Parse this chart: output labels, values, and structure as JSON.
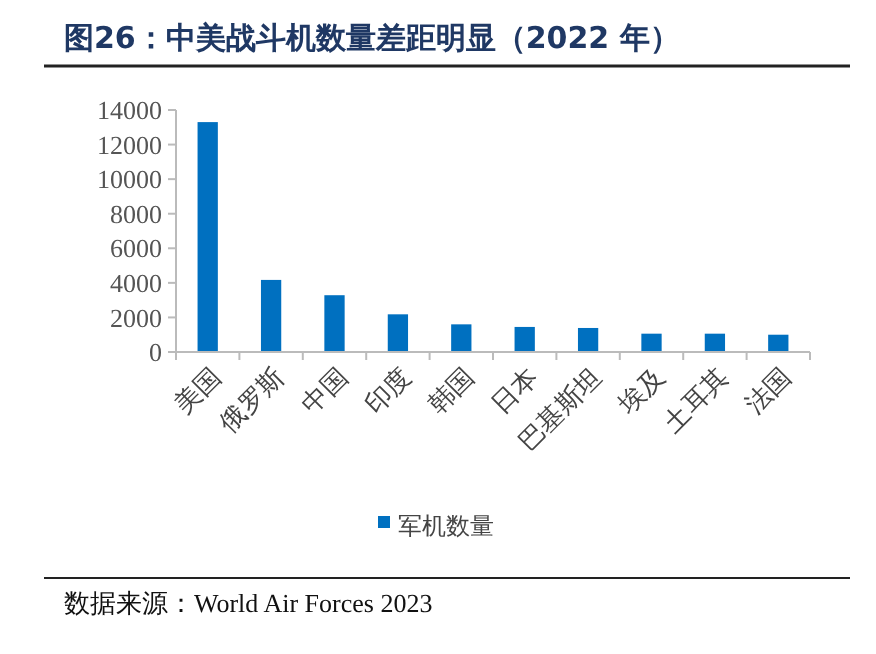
{
  "chart_data": {
    "type": "bar",
    "title": "图26：中美战斗机数量差距明显（2022 年）",
    "categories": [
      "美国",
      "俄罗斯",
      "中国",
      "印度",
      "韩国",
      "日本",
      "巴基斯坦",
      "埃及",
      "土耳其",
      "法国"
    ],
    "series": [
      {
        "name": "军机数量",
        "color": "#0070c0",
        "values": [
          13300,
          4170,
          3285,
          2180,
          1600,
          1450,
          1390,
          1060,
          1060,
          1000
        ]
      }
    ],
    "ylim": [
      0,
      14000
    ],
    "yticks": [
      0,
      2000,
      4000,
      6000,
      8000,
      10000,
      12000,
      14000
    ],
    "grid": false,
    "legend": "bottom",
    "annotations": [
      "数据来源：World Air Forces 2023"
    ]
  }
}
